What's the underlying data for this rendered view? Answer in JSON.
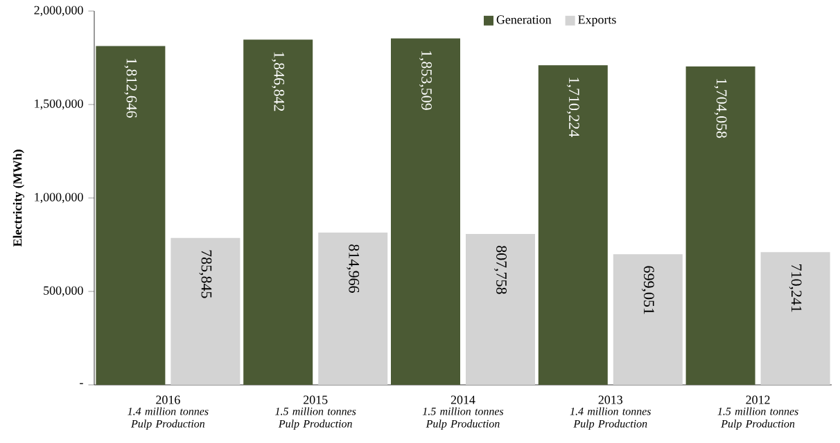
{
  "chart_data": {
    "type": "bar",
    "ylabel": "Electricity (MWh)",
    "categories": [
      "2016",
      "2015",
      "2014",
      "2013",
      "2012"
    ],
    "series": [
      {
        "name": "Generation",
        "color": "#4b5a34",
        "values": [
          1812646,
          1846842,
          1853509,
          1710224,
          1704058
        ],
        "value_labels": [
          "1,812,646",
          "1,846,842",
          "1,853,509",
          "1,710,224",
          "1,704,058"
        ]
      },
      {
        "name": "Exports",
        "color": "#d3d3d3",
        "values": [
          785845,
          814966,
          807758,
          699051,
          710241
        ],
        "value_labels": [
          "785,845",
          "814,966",
          "807,758",
          "699,051",
          "710,241"
        ]
      }
    ],
    "ylim": [
      0,
      2000000
    ],
    "yticks": [
      {
        "value": 0,
        "label": "-"
      },
      {
        "value": 500000,
        "label": "500,000"
      },
      {
        "value": 1000000,
        "label": "1,000,000"
      },
      {
        "value": 1500000,
        "label": "1,500,000"
      },
      {
        "value": 2000000,
        "label": "2,000,000"
      }
    ],
    "annotations": [
      "1.4 million tonnes Pulp Production",
      "1.5 million tonnes Pulp Production",
      "1.5 million tonnes Pulp Production",
      "1.4 million tonnes Pulp Production",
      "1.5 million tonnes Pulp Production"
    ],
    "legend": "top"
  }
}
